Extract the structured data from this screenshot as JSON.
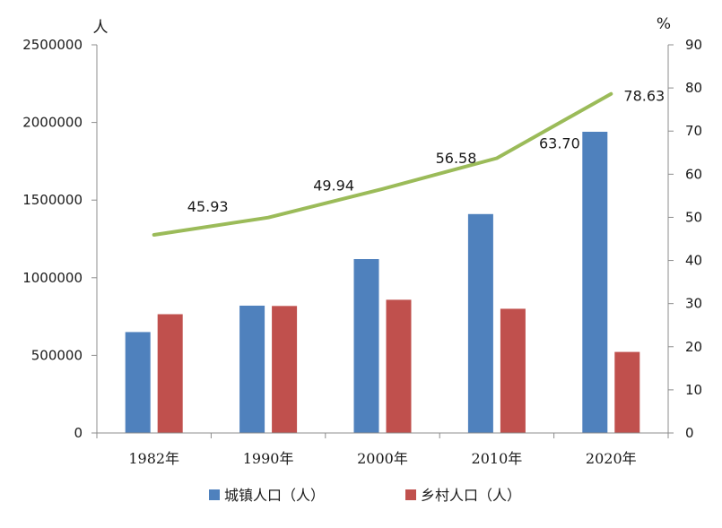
{
  "chart_data": {
    "type": "bar",
    "categories": [
      "1982年",
      "1990年",
      "2000年",
      "2010年",
      "2020年"
    ],
    "series": [
      {
        "name": "城镇人口（人）",
        "type": "bar",
        "axis": "left",
        "color": "#4F81BD",
        "values": [
          650000,
          820000,
          1120000,
          1410000,
          1940000
        ]
      },
      {
        "name": "乡村人口（人）",
        "type": "bar",
        "axis": "left",
        "color": "#C0504D",
        "values": [
          765000,
          818000,
          858000,
          800000,
          522000
        ]
      },
      {
        "name": "",
        "type": "line",
        "axis": "right",
        "color": "#9BBB59",
        "values": [
          45.93,
          49.94,
          56.58,
          63.7,
          78.63
        ],
        "labels": [
          "45.93",
          "49.94",
          "56.58",
          "63.70",
          "78.63"
        ]
      }
    ],
    "y_left": {
      "unit": "人",
      "ylim": [
        0,
        2500000
      ],
      "ticks": [
        0,
        500000,
        1000000,
        1500000,
        2000000,
        2500000
      ],
      "tick_labels": [
        "0",
        "500000",
        "1000000",
        "1500000",
        "2000000",
        "2500000"
      ]
    },
    "y_right": {
      "unit": "%",
      "ylim": [
        0,
        90
      ],
      "ticks": [
        0,
        10,
        20,
        30,
        40,
        50,
        60,
        70,
        80,
        90
      ],
      "tick_labels": [
        "0",
        "10",
        "20",
        "30",
        "40",
        "50",
        "60",
        "70",
        "80",
        "90"
      ]
    },
    "title": "",
    "xlabel": "",
    "grid": false,
    "legend_position": "bottom"
  }
}
